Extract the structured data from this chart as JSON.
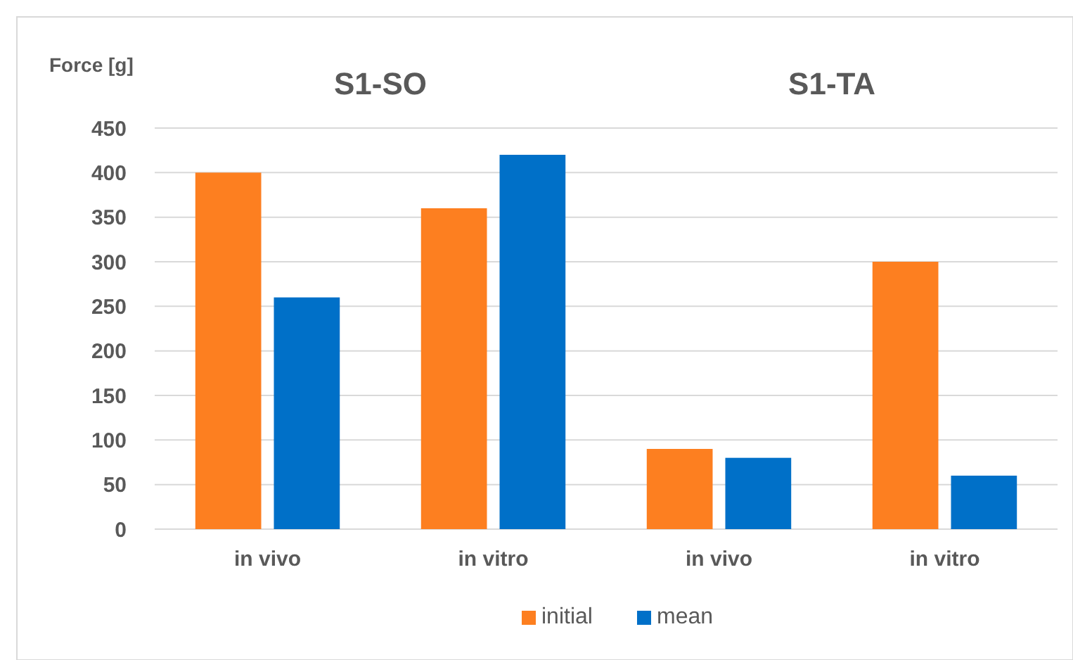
{
  "chart_data": {
    "type": "bar",
    "ylabel": "Force [g]",
    "annotations": [
      "S1-SO",
      "S1-TA"
    ],
    "categories": [
      "in vivo",
      "in vitro",
      "in vivo",
      "in vitro"
    ],
    "series": [
      {
        "name": "initial",
        "color": "#fd7f20",
        "values": [
          400,
          360,
          90,
          300
        ]
      },
      {
        "name": "mean",
        "color": "#0070c8",
        "values": [
          260,
          420,
          80,
          60
        ]
      }
    ],
    "ylim": [
      0,
      450
    ],
    "yticks": [
      0,
      50,
      100,
      150,
      200,
      250,
      300,
      350,
      400,
      450
    ],
    "grid": "y",
    "legend": "bottom"
  }
}
